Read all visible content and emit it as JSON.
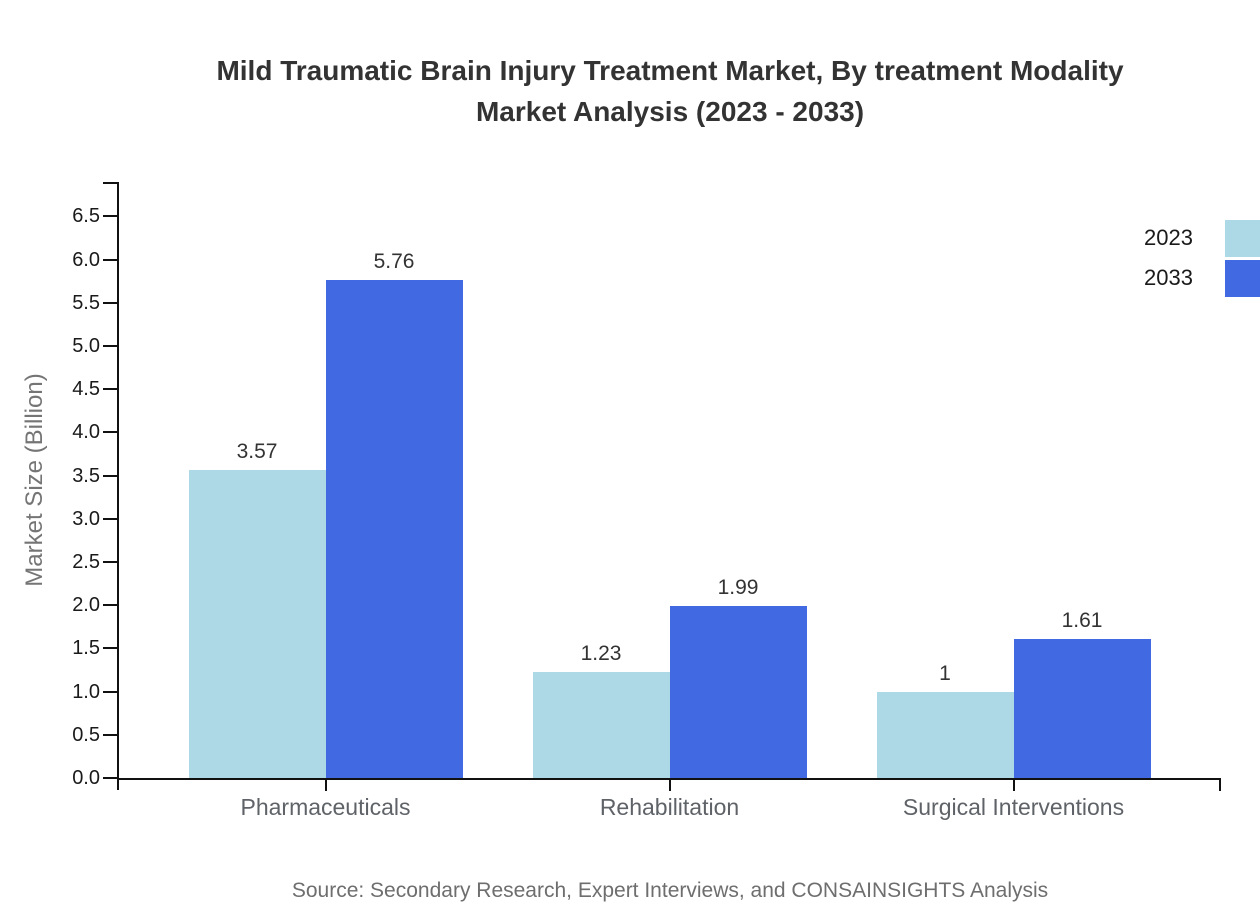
{
  "title": {
    "line1": "Mild Traumatic Brain Injury Treatment Market, By treatment Modality",
    "line2": "Market Analysis (2023 - 2033)"
  },
  "source": "Source: Secondary Research, Expert Interviews, and CONSAINSIGHTS Analysis",
  "legend": {
    "position": "top-right",
    "items": [
      {
        "label": "2023",
        "color": "#ADD8E6"
      },
      {
        "label": "2033",
        "color": "#4169E1"
      }
    ]
  },
  "colors": {
    "series_2023": "#ADD8E6",
    "series_2033": "#4169E1",
    "axis": "#111111",
    "title_text": "#333333",
    "tick_text": "#1a1a1a",
    "category_text": "#5f6368",
    "value_text": "#333333",
    "axis_title_text": "#757575",
    "source_text": "#6e6e6e"
  },
  "chart_data": {
    "type": "bar",
    "title": "Mild Traumatic Brain Injury Treatment Market, By treatment Modality Market Analysis (2023 - 2033)",
    "categories": [
      "Pharmaceuticals",
      "Rehabilitation",
      "Surgical Interventions"
    ],
    "series": [
      {
        "name": "2023",
        "color": "#ADD8E6",
        "values": [
          3.57,
          1.23,
          1
        ]
      },
      {
        "name": "2033",
        "color": "#4169E1",
        "values": [
          5.76,
          1.99,
          1.61
        ]
      }
    ],
    "xlabel": "",
    "ylabel": "Market Size (Billion)",
    "ylim": [
      0,
      6.5
    ],
    "ytick_step": 0.5,
    "ytick_format_decimals": 1,
    "grid": false,
    "legend_position": "top-right",
    "bar_value_labels": true
  }
}
